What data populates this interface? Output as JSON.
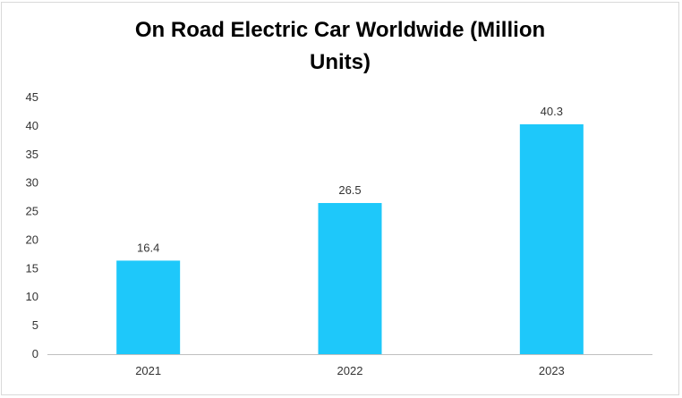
{
  "chart_data": {
    "type": "bar",
    "title": "On Road Electric Car Worldwide (Million Units)",
    "xlabel": "",
    "ylabel": "",
    "categories": [
      "2021",
      "2022",
      "2023"
    ],
    "values": [
      16.4,
      26.5,
      40.3
    ],
    "data_labels": [
      "16.4",
      "26.5",
      "40.3"
    ],
    "ylim": [
      0,
      45
    ],
    "yticks": [
      0,
      5,
      10,
      15,
      20,
      25,
      30,
      35,
      40,
      45
    ],
    "grid": false,
    "legend": "none",
    "bar_color": "#1ec8fa"
  }
}
